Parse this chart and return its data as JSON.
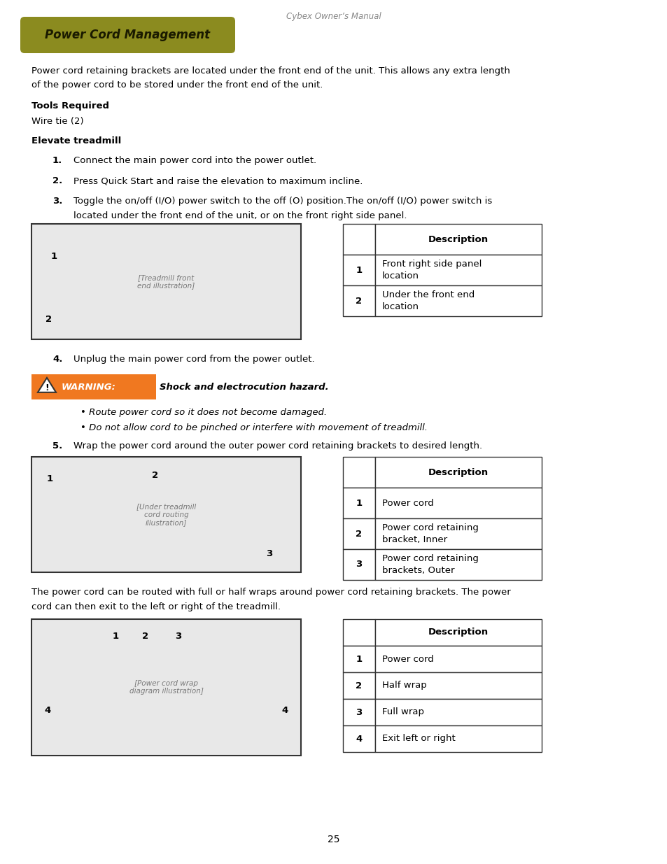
{
  "page_title": "Cybex Owner’s Manual",
  "section_title": "Power Cord Management",
  "section_title_bg": "#8b8b1f",
  "body_text_1a": "Power cord retaining brackets are located under the front end of the unit. This allows any extra length",
  "body_text_1b": "of the power cord to be stored under the front end of the unit.",
  "bold_heading_1": "Tools Required",
  "tools_text": "Wire tie (2)",
  "bold_heading_2": "Elevate treadmill",
  "step1_num": "1.",
  "step1_text": "Connect the main power cord into the power outlet.",
  "step2_num": "2.",
  "step2_text": "Press Quick Start and raise the elevation to maximum incline.",
  "step3_num": "3.",
  "step3_text_a": "Toggle the on/off (I/O) power switch to the off (O) position.The on/off (I/O) power switch is",
  "step3_text_b": "located under the front end of the unit, or on the front right side panel.",
  "table1_headers": [
    "",
    "Description"
  ],
  "table1_rows": [
    [
      "1",
      "Front right side panel\nlocation"
    ],
    [
      "2",
      "Under the front end\nlocation"
    ]
  ],
  "step4_num": "4.",
  "step4_text": "Unplug the main power cord from the power outlet.",
  "warning_bg": "#f07820",
  "warning_label": "WARNING:",
  "warning_bold": "Shock and electrocution hazard.",
  "warning_bullet1": "Route power cord so it does not become damaged.",
  "warning_bullet2": "Do not allow cord to be pinched or interfere with movement of treadmill.",
  "step5_num": "5.",
  "step5_text": "Wrap the power cord around the outer power cord retaining brackets to desired length.",
  "table2_headers": [
    "",
    "Description"
  ],
  "table2_rows": [
    [
      "1",
      "Power cord"
    ],
    [
      "2",
      "Power cord retaining\nbracket, Inner"
    ],
    [
      "3",
      "Power cord retaining\nbrackets, Outer"
    ]
  ],
  "body_text_2a": "The power cord can be routed with full or half wraps around power cord retaining brackets. The power",
  "body_text_2b": "cord can then exit to the left or right of the treadmill.",
  "table3_headers": [
    "",
    "Description"
  ],
  "table3_rows": [
    [
      "1",
      "Power cord"
    ],
    [
      "2",
      "Half wrap"
    ],
    [
      "3",
      "Full wrap"
    ],
    [
      "4",
      "Exit left or right"
    ]
  ],
  "page_number": "25",
  "img1_label1": "1",
  "img1_label2": "2",
  "img2_label1": "1",
  "img2_label2": "2",
  "img2_label3": "3",
  "img3_label1": "1",
  "img3_label2": "2",
  "img3_label3": "3",
  "img3_label4": "4"
}
